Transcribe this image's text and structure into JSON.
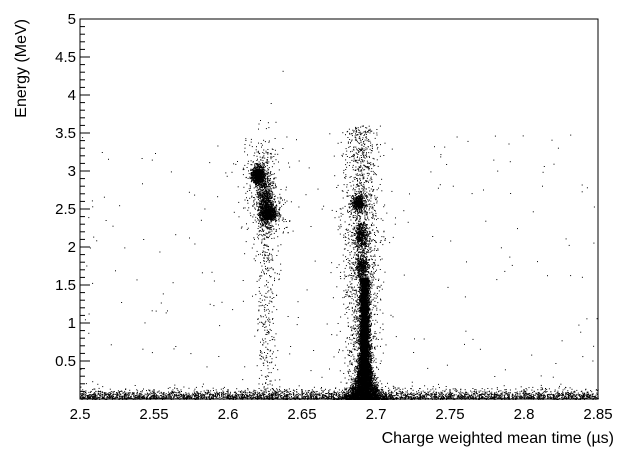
{
  "chart_data": {
    "type": "scatter",
    "title": "",
    "xlabel": "Charge weighted mean time (µs)",
    "ylabel": "Energy (MeV)",
    "xlim": [
      2.5,
      2.85
    ],
    "ylim": [
      0,
      5
    ],
    "xticks": [
      2.5,
      2.55,
      2.6,
      2.65,
      2.7,
      2.75,
      2.8,
      2.85
    ],
    "xtick_labels": [
      "2.5",
      "2.55",
      "2.6",
      "2.65",
      "2.7",
      "2.75",
      "2.8",
      "2.85"
    ],
    "yticks": [
      0.5,
      1,
      1.5,
      2,
      2.5,
      3,
      3.5,
      4,
      4.5,
      5
    ],
    "ytick_labels": [
      "0.5",
      "1",
      "1.5",
      "2",
      "2.5",
      "3",
      "3.5",
      "4",
      "4.5",
      "5"
    ],
    "grid": false,
    "point_color": "#000000",
    "clusters": [
      {
        "x_center": 2.62,
        "y_center": 2.95,
        "x_spread": 0.002,
        "y_spread": 0.06,
        "n_core": 900
      },
      {
        "x_center": 2.625,
        "y_center": 2.6,
        "x_spread": 0.0025,
        "y_spread": 0.18,
        "n_core": 700
      },
      {
        "x_center": 2.627,
        "y_center": 2.45,
        "x_spread": 0.003,
        "y_spread": 0.06,
        "n_core": 700
      },
      {
        "x_center": 2.688,
        "y_center": 2.58,
        "x_spread": 0.0022,
        "y_spread": 0.05,
        "n_core": 500
      },
      {
        "x_center": 2.69,
        "y_center": 2.15,
        "x_spread": 0.0022,
        "y_spread": 0.08,
        "n_core": 400
      },
      {
        "x_center": 2.69,
        "y_center": 1.75,
        "x_spread": 0.0022,
        "y_spread": 0.07,
        "n_core": 400
      }
    ],
    "main_peak": {
      "x_center": 2.692,
      "y_bottom": 0,
      "y_top": 1.6,
      "core_width": 0.003,
      "base_width": 0.016,
      "n_core": 9000
    },
    "baseline_band": {
      "y_max": 0.12,
      "x_range": [
        2.5,
        2.85
      ],
      "n_points": 3500
    }
  }
}
